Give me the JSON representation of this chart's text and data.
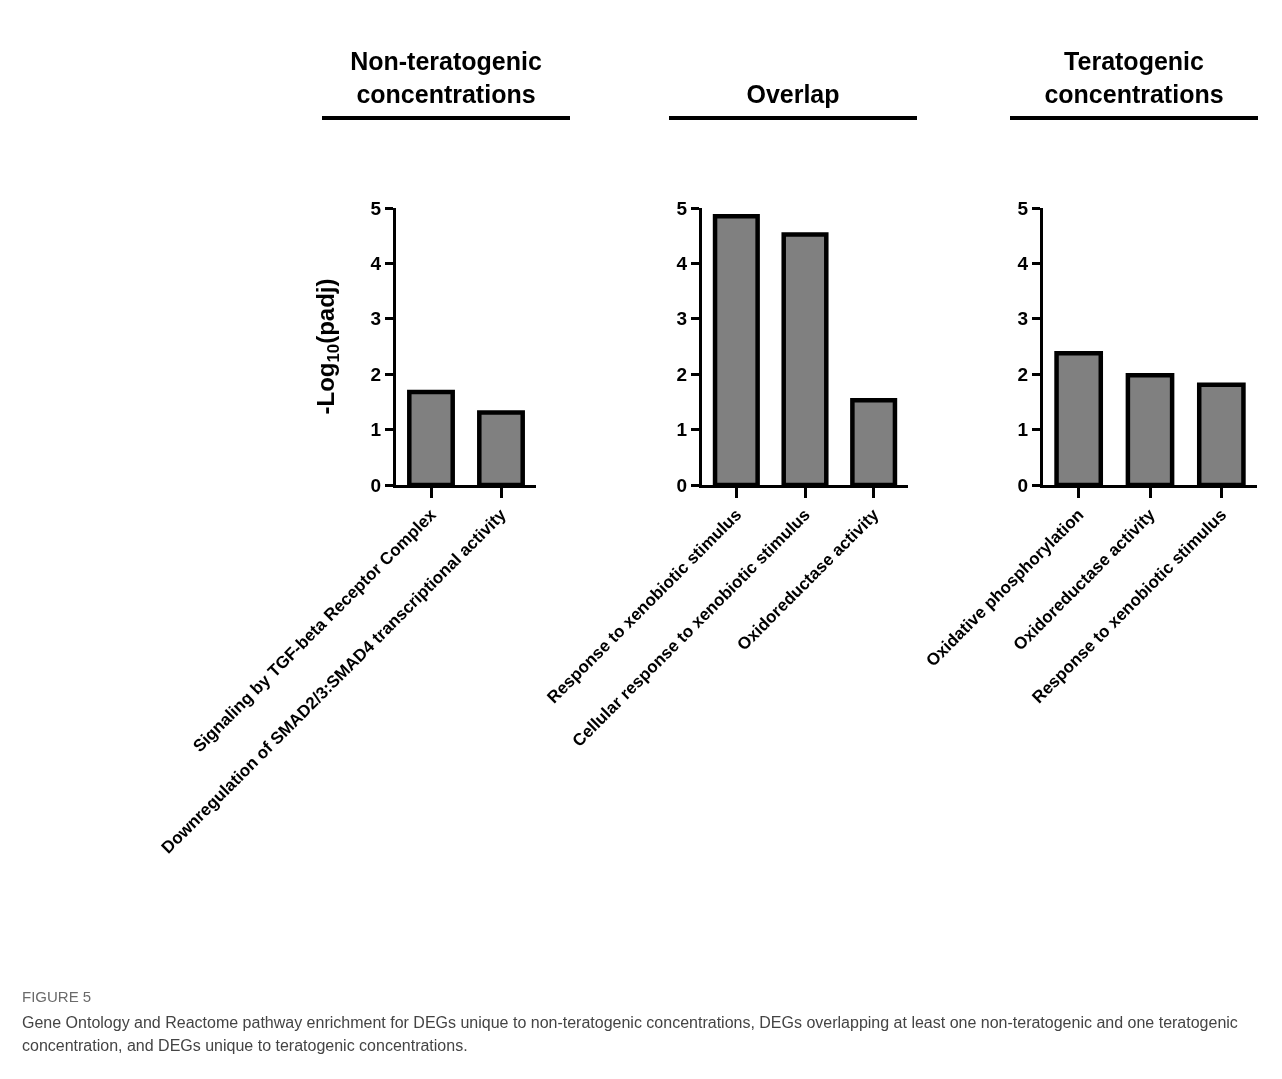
{
  "chart_data": [
    {
      "type": "bar",
      "title": "Non-teratogenic concentrations",
      "ylabel": "-Log$_{10}$(padj)",
      "categories": [
        "Signaling by TGF-beta Receptor Complex",
        "Downregulation of SMAD2/3:SMAD4 transcriptional activity"
      ],
      "values": [
        1.68,
        1.31
      ],
      "color": "#808080",
      "ylim": [
        0,
        5
      ],
      "yticks": [
        0,
        1,
        2,
        3,
        4,
        5
      ],
      "grid": false,
      "legend": false,
      "annotations": [
        "FIGURE 5",
        "Gene Ontology and Reactome pathway enrichment for DEGs unique to non-teratogenic concentrations, DEGs overlapping at least one non-teratogenic and one teratogenic concentration, and DEGs unique to teratogenic concentrations."
      ]
    },
    {
      "type": "bar",
      "title": "Overlap",
      "categories": [
        "Response to xenobiotic stimulus",
        "Cellular response to xenobiotic stimulus",
        "Oxidoreductase activity"
      ],
      "values": [
        4.85,
        4.52,
        1.53
      ],
      "color": "#808080",
      "ylim": [
        0,
        5
      ],
      "yticks": [
        0,
        1,
        2,
        3,
        4,
        5
      ],
      "grid": false,
      "legend": false
    },
    {
      "type": "bar",
      "title": "Teratogenic concentrations",
      "categories": [
        "Oxidative phosphorylation",
        "Oxidoreductase activity",
        "Response to xenobiotic stimulus"
      ],
      "values": [
        2.38,
        1.98,
        1.81
      ],
      "color": "#808080",
      "ylim": [
        0,
        5
      ],
      "yticks": [
        0,
        1,
        2,
        3,
        4,
        5
      ],
      "grid": false,
      "legend": false
    }
  ]
}
